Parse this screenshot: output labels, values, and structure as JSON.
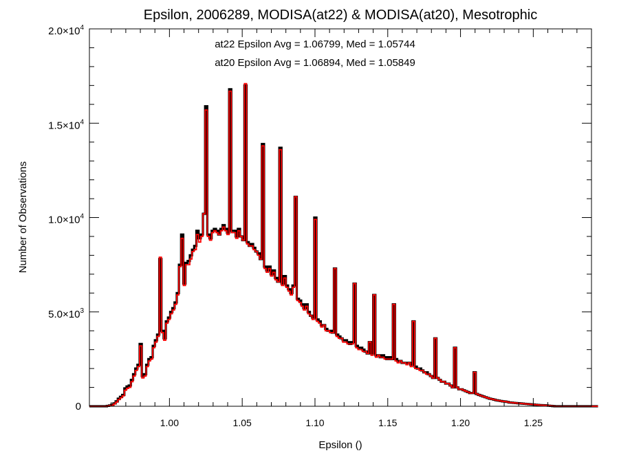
{
  "chart_data": {
    "type": "histogram",
    "title": "Epsilon, 2006289, MODISA(at22) & MODISA(at20), Mesotrophic",
    "xlabel": "Epsilon ()",
    "ylabel": "Number of Observations",
    "xlim": [
      0.945,
      1.29
    ],
    "ylim": [
      0,
      20000
    ],
    "x_ticks": [
      {
        "value": 1.0,
        "label": "1.00"
      },
      {
        "value": 1.05,
        "label": "1.05"
      },
      {
        "value": 1.1,
        "label": "1.10"
      },
      {
        "value": 1.15,
        "label": "1.15"
      },
      {
        "value": 1.2,
        "label": "1.20"
      },
      {
        "value": 1.25,
        "label": "1.25"
      }
    ],
    "y_ticks": [
      {
        "value": 0,
        "mantissa": "0",
        "exponent": ""
      },
      {
        "value": 5000,
        "mantissa": "5.0×10",
        "exponent": "3"
      },
      {
        "value": 10000,
        "mantissa": "1.0×10",
        "exponent": "4"
      },
      {
        "value": 15000,
        "mantissa": "1.5×10",
        "exponent": "4"
      },
      {
        "value": 20000,
        "mantissa": "2.0×10",
        "exponent": "4"
      }
    ],
    "annotations": [
      {
        "text": "at22 Epsilon Avg = 1.06799, Med = 1.05744",
        "color": "#000000"
      },
      {
        "text": "at20 Epsilon Avg = 1.06894, Med = 1.05849",
        "color": "#ff0000"
      }
    ],
    "bin_start": 0.945,
    "bin_width": 0.0015,
    "series": [
      {
        "color": "#000000",
        "values": [
          0,
          0,
          0,
          0,
          0,
          0,
          0,
          0,
          20,
          40,
          80,
          150,
          260,
          400,
          500,
          600,
          950,
          1050,
          1100,
          1400,
          1700,
          2000,
          2200,
          3300,
          1600,
          1700,
          2200,
          2500,
          2600,
          3200,
          3500,
          3800,
          7800,
          4000,
          3600,
          4500,
          4700,
          5000,
          5200,
          5500,
          6000,
          7500,
          9100,
          6500,
          7600,
          7700,
          8000,
          8300,
          8500,
          9300,
          8900,
          9100,
          10200,
          15900,
          9100,
          8900,
          9300,
          9400,
          9300,
          9100,
          9400,
          9600,
          9400,
          9200,
          16800,
          9300,
          9300,
          9000,
          9400,
          9000,
          8800,
          17000,
          8700,
          8500,
          8600,
          8400,
          8200,
          8100,
          7800,
          13900,
          7400,
          7200,
          7400,
          7000,
          7200,
          6800,
          6600,
          13700,
          6500,
          6900,
          6400,
          6200,
          6000,
          6400,
          11100,
          5700,
          5600,
          5400,
          5200,
          5400,
          5000,
          4800,
          4700,
          10000,
          4600,
          4500,
          4300,
          4300,
          4100,
          4000,
          4000,
          3900,
          7300,
          3800,
          3700,
          3600,
          3500,
          3500,
          3400,
          3300,
          3400,
          6500,
          3200,
          3100,
          3100,
          3000,
          2900,
          2800,
          3400,
          2800,
          5900,
          2700,
          2700,
          2600,
          2700,
          2600,
          2500,
          2600,
          2500,
          5400,
          2500,
          2400,
          2400,
          2300,
          2300,
          2300,
          2300,
          2200,
          4500,
          2100,
          2000,
          2000,
          1900,
          1800,
          1800,
          1700,
          1600,
          1500,
          3600,
          1500,
          1400,
          1300,
          1300,
          1200,
          1200,
          1100,
          1000,
          3100,
          1000,
          900,
          900,
          850,
          800,
          750,
          700,
          700,
          1800,
          650,
          600,
          560,
          520,
          480,
          440,
          400,
          380,
          350,
          320,
          300,
          280,
          260,
          250,
          230,
          200,
          190,
          180,
          170,
          160,
          150,
          140,
          130,
          120,
          110,
          100,
          90,
          80,
          70,
          60,
          55,
          50,
          40,
          30,
          20,
          10,
          0,
          0,
          0,
          0,
          0,
          0,
          0,
          0,
          0,
          0,
          0,
          0,
          0,
          0,
          0,
          0,
          0,
          0,
          0,
          0
        ]
      },
      {
        "color": "#ff0000",
        "values": [
          0,
          0,
          0,
          0,
          0,
          0,
          0,
          0,
          15,
          30,
          60,
          120,
          220,
          350,
          450,
          550,
          850,
          950,
          1000,
          1300,
          1600,
          1900,
          2100,
          3200,
          1500,
          1600,
          2100,
          2400,
          2500,
          3100,
          3400,
          3700,
          7900,
          3900,
          3500,
          4400,
          4600,
          4900,
          5100,
          5400,
          5900,
          7400,
          8900,
          6400,
          7500,
          7500,
          7800,
          8200,
          8300,
          9100,
          8700,
          9000,
          10200,
          15700,
          9000,
          8800,
          9200,
          9300,
          9200,
          9100,
          9300,
          9500,
          9300,
          9100,
          16700,
          9200,
          9200,
          8900,
          9300,
          9000,
          8800,
          17100,
          8600,
          8500,
          8500,
          8300,
          8200,
          8000,
          7800,
          13800,
          7300,
          7100,
          7300,
          6900,
          7100,
          6700,
          6600,
          13600,
          6400,
          6800,
          6300,
          6100,
          5900,
          6300,
          11100,
          5600,
          5500,
          5300,
          5100,
          5300,
          4900,
          4800,
          4600,
          9900,
          4500,
          4400,
          4200,
          4300,
          4000,
          4000,
          3900,
          3900,
          7300,
          3700,
          3600,
          3600,
          3400,
          3400,
          3300,
          3300,
          3300,
          6500,
          3100,
          3000,
          3000,
          2900,
          2900,
          2800,
          3400,
          2700,
          5900,
          2600,
          2700,
          2600,
          2600,
          2500,
          2500,
          2500,
          2500,
          5400,
          2400,
          2300,
          2400,
          2300,
          2300,
          2200,
          2300,
          2100,
          4500,
          2000,
          2000,
          1900,
          1900,
          1800,
          1700,
          1700,
          1600,
          1500,
          3600,
          1500,
          1400,
          1300,
          1300,
          1200,
          1200,
          1100,
          1000,
          3100,
          1000,
          900,
          900,
          850,
          800,
          750,
          700,
          700,
          1800,
          650,
          600,
          560,
          520,
          480,
          440,
          400,
          380,
          350,
          320,
          300,
          280,
          260,
          250,
          230,
          200,
          190,
          180,
          170,
          160,
          150,
          140,
          130,
          120,
          110,
          100,
          90,
          80,
          70,
          60,
          55,
          50,
          40,
          30,
          20,
          10,
          0,
          0,
          0,
          0,
          0,
          0,
          0,
          0,
          0,
          0,
          0,
          0,
          0,
          0,
          0,
          0,
          0,
          0,
          0,
          0
        ]
      }
    ]
  }
}
